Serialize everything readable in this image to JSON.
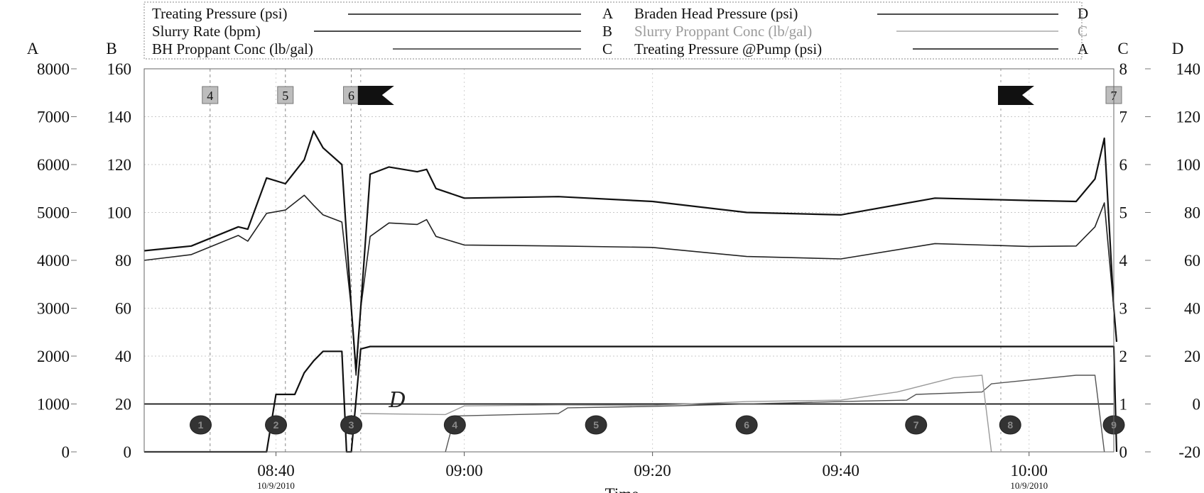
{
  "chart_data": {
    "type": "line",
    "xlabel": "Time",
    "x_range": [
      "08:26",
      "10:09"
    ],
    "x_ticks": [
      {
        "time": "08:40",
        "label": "08:40",
        "date": "10/9/2010"
      },
      {
        "time": "09:00",
        "label": "09:00",
        "date": ""
      },
      {
        "time": "09:20",
        "label": "09:20",
        "date": ""
      },
      {
        "time": "09:40",
        "label": "09:40",
        "date": ""
      },
      {
        "time": "10:00",
        "label": "10:00",
        "date": "10/9/2010"
      },
      {
        "time": "",
        "label": "Time",
        "date": ""
      }
    ],
    "axes": [
      {
        "id": "A",
        "label": "A",
        "range": [
          0,
          8000
        ],
        "ticks": [
          "0",
          "1000",
          "2000",
          "3000",
          "4000",
          "5000",
          "6000",
          "7000",
          "8000"
        ]
      },
      {
        "id": "B",
        "label": "B",
        "range": [
          0,
          160
        ],
        "ticks": [
          "0",
          "20",
          "40",
          "60",
          "80",
          "100",
          "120",
          "140",
          "160"
        ]
      },
      {
        "id": "C",
        "label": "C",
        "range": [
          0,
          8
        ],
        "ticks": [
          "0",
          "1",
          "2",
          "3",
          "4",
          "5",
          "6",
          "7",
          "8"
        ]
      },
      {
        "id": "D",
        "label": "D",
        "range": [
          -20,
          140
        ],
        "ticks": [
          "-20",
          "0",
          "20",
          "40",
          "60",
          "80",
          "100",
          "120",
          "140"
        ]
      }
    ],
    "legend": [
      {
        "name": "Treating Pressure (psi)",
        "axis": "A",
        "color": "#111111"
      },
      {
        "name": "Slurry Rate (bpm)",
        "axis": "B",
        "color": "#111111"
      },
      {
        "name": "BH Proppant Conc (lb/gal)",
        "axis": "C",
        "color": "#777777"
      },
      {
        "name": "Braden Head Pressure (psi)",
        "axis": "D",
        "color": "#111111"
      },
      {
        "name": "Slurry Proppant Conc (lb/gal)",
        "axis": "C",
        "color": "#aaaaaa"
      },
      {
        "name": "Treating Pressure @Pump (psi)",
        "axis": "A",
        "color": "#111111"
      }
    ],
    "series": [
      {
        "name": "Treating Pressure (psi)",
        "axis": "A",
        "color": "#222222",
        "points": [
          [
            "08:26",
            4000
          ],
          [
            "08:31",
            4120
          ],
          [
            "08:36",
            4520
          ],
          [
            "08:37",
            4400
          ],
          [
            "08:39",
            4980
          ],
          [
            "08:41",
            5050
          ],
          [
            "08:43",
            5360
          ],
          [
            "08:44",
            5150
          ],
          [
            "08:45",
            4950
          ],
          [
            "08:47",
            4800
          ],
          [
            "08:48",
            3000
          ],
          [
            "08:48.5",
            1600
          ],
          [
            "08:49",
            3000
          ],
          [
            "08:50",
            4500
          ],
          [
            "08:52",
            4780
          ],
          [
            "08:55",
            4750
          ],
          [
            "08:56",
            4850
          ],
          [
            "08:57",
            4500
          ],
          [
            "09:00",
            4320
          ],
          [
            "09:10",
            4300
          ],
          [
            "09:20",
            4270
          ],
          [
            "09:30",
            4080
          ],
          [
            "09:40",
            4030
          ],
          [
            "09:50",
            4350
          ],
          [
            "10:00",
            4290
          ],
          [
            "10:05",
            4300
          ],
          [
            "10:07",
            4700
          ],
          [
            "10:08",
            5200
          ],
          [
            "10:09",
            3000
          ],
          [
            "10:09.3",
            2300
          ]
        ]
      },
      {
        "name": "Treating Pressure @Pump (psi)",
        "axis": "A",
        "color": "#111111",
        "points": [
          [
            "08:26",
            4200
          ],
          [
            "08:31",
            4300
          ],
          [
            "08:36",
            4700
          ],
          [
            "08:37",
            4650
          ],
          [
            "08:39",
            5720
          ],
          [
            "08:41",
            5600
          ],
          [
            "08:43",
            6100
          ],
          [
            "08:44",
            6700
          ],
          [
            "08:45",
            6350
          ],
          [
            "08:47",
            6000
          ],
          [
            "08:48",
            3000
          ],
          [
            "08:48.5",
            1700
          ],
          [
            "08:49",
            3000
          ],
          [
            "08:50",
            5800
          ],
          [
            "08:52",
            5950
          ],
          [
            "08:55",
            5850
          ],
          [
            "08:56",
            5900
          ],
          [
            "08:57",
            5500
          ],
          [
            "09:00",
            5300
          ],
          [
            "09:10",
            5330
          ],
          [
            "09:20",
            5230
          ],
          [
            "09:30",
            5000
          ],
          [
            "09:40",
            4950
          ],
          [
            "09:50",
            5300
          ],
          [
            "10:00",
            5250
          ],
          [
            "10:05",
            5230
          ],
          [
            "10:07",
            5700
          ],
          [
            "10:08",
            6550
          ],
          [
            "10:09",
            3000
          ],
          [
            "10:09.3",
            2300
          ]
        ]
      },
      {
        "name": "Slurry Rate (bpm)",
        "axis": "B",
        "color": "#111111",
        "points": [
          [
            "08:26",
            0
          ],
          [
            "08:39",
            0
          ],
          [
            "08:40",
            24
          ],
          [
            "08:42",
            24
          ],
          [
            "08:43",
            33
          ],
          [
            "08:44",
            38
          ],
          [
            "08:45",
            42
          ],
          [
            "08:47",
            42
          ],
          [
            "08:47.5",
            0
          ],
          [
            "08:48",
            0
          ],
          [
            "08:49",
            43
          ],
          [
            "08:50",
            44
          ],
          [
            "09:20",
            44
          ],
          [
            "09:40",
            44
          ],
          [
            "10:00",
            44
          ],
          [
            "10:09",
            44
          ],
          [
            "10:09.3",
            0
          ]
        ]
      },
      {
        "name": "Braden Head Pressure (psi)",
        "axis": "D",
        "color": "#111111",
        "points": [
          [
            "08:26",
            0
          ],
          [
            "10:09",
            0
          ]
        ]
      },
      {
        "name": "BH Proppant Conc (lb/gal)",
        "axis": "C",
        "color": "#555555",
        "points": [
          [
            "08:58",
            0
          ],
          [
            "08:59",
            0.75
          ],
          [
            "09:10",
            0.8
          ],
          [
            "09:11",
            0.92
          ],
          [
            "09:20",
            0.95
          ],
          [
            "09:30",
            1.0
          ],
          [
            "09:40",
            1.05
          ],
          [
            "09:47",
            1.08
          ],
          [
            "09:48",
            1.2
          ],
          [
            "09:55",
            1.25
          ],
          [
            "09:56",
            1.42
          ],
          [
            "10:05",
            1.6
          ],
          [
            "10:07",
            1.6
          ],
          [
            "10:08",
            0
          ]
        ]
      },
      {
        "name": "Slurry Proppant Conc (lb/gal)",
        "axis": "C",
        "color": "#9a9a9a",
        "points": [
          [
            "08:49",
            0.8
          ],
          [
            "08:58",
            0.78
          ],
          [
            "09:00",
            0.96
          ],
          [
            "09:10",
            0.98
          ],
          [
            "09:20",
            0.97
          ],
          [
            "09:30",
            1.05
          ],
          [
            "09:40",
            1.08
          ],
          [
            "09:46",
            1.25
          ],
          [
            "09:52",
            1.55
          ],
          [
            "09:55",
            1.6
          ],
          [
            "09:56",
            0
          ]
        ]
      }
    ],
    "stage_markers": [
      {
        "label": "4",
        "time": "08:33"
      },
      {
        "label": "5",
        "time": "08:41"
      },
      {
        "label": "6",
        "time": "08:48"
      },
      {
        "label": "7",
        "time": "10:09"
      }
    ],
    "flags": [
      {
        "time": "08:49"
      },
      {
        "time": "09:57"
      }
    ],
    "events": [
      {
        "label": "1",
        "time": "08:32"
      },
      {
        "label": "2",
        "time": "08:40"
      },
      {
        "label": "3",
        "time": "08:48"
      },
      {
        "label": "4",
        "time": "08:59"
      },
      {
        "label": "5",
        "time": "09:14"
      },
      {
        "label": "6",
        "time": "09:30"
      },
      {
        "label": "7",
        "time": "09:48"
      },
      {
        "label": "8",
        "time": "09:58"
      },
      {
        "label": "9",
        "time": "10:09"
      }
    ],
    "annotations": [
      {
        "text": "D",
        "time": "08:55",
        "value_A": 1200
      }
    ]
  }
}
